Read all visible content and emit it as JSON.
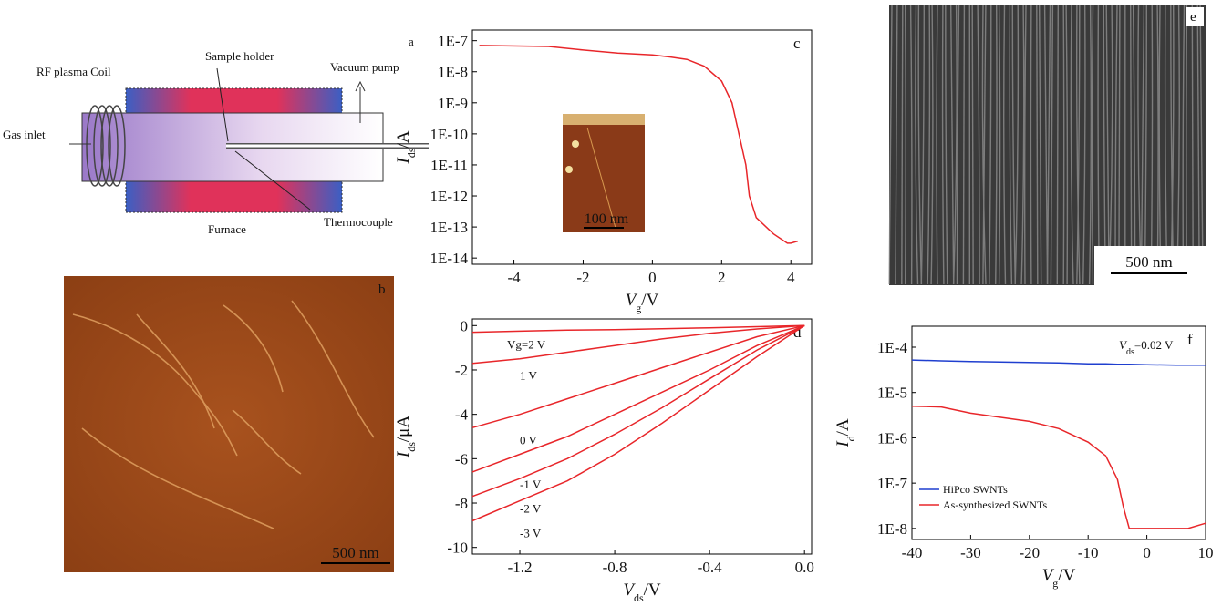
{
  "diagram": {
    "panel_label": "a",
    "labels": [
      "RF plasma Coil",
      "Sample holder",
      "Vacuum pump",
      "Gas inlet",
      "Furnace",
      "Thermocouple"
    ]
  },
  "images": [
    {
      "panel_label": "b",
      "scale_bar": "500 nm"
    },
    {
      "panel_label": "e",
      "scale_bar": "500 nm"
    },
    {
      "scale_bar": "100 nm"
    }
  ],
  "chart_data": [
    {
      "type": "line",
      "panel_label": "c",
      "log_y": true,
      "x": [
        -5,
        -3,
        -2,
        -1,
        0,
        0.5,
        1,
        1.5,
        2,
        2.3,
        2.5,
        2.7,
        2.8,
        3,
        3.5,
        3.9,
        4,
        4.2
      ],
      "series": [
        {
          "color": "#e8262a",
          "values": [
            7e-08,
            6.5e-08,
            5e-08,
            4e-08,
            3.5e-08,
            3e-08,
            2.5e-08,
            1.5e-08,
            5e-09,
            1e-09,
            1e-10,
            1e-11,
            1e-12,
            2e-13,
            6e-14,
            3e-14,
            3e-14,
            3.5e-14
          ]
        }
      ],
      "xlim": [
        -5.2,
        4.6
      ],
      "xticks": [
        -4,
        -2,
        0,
        2,
        4
      ],
      "ylim": [
        6.3e-15,
        2.2e-07
      ],
      "yticks": [
        {
          "value": 1e-14,
          "label": "1E-14"
        },
        {
          "value": 1e-13,
          "label": "1E-13"
        },
        {
          "value": 1e-12,
          "label": "1E-12"
        },
        {
          "value": 1e-11,
          "label": "1E-11"
        },
        {
          "value": 1e-10,
          "label": "1E-10"
        },
        {
          "value": 1e-09,
          "label": "1E-9"
        },
        {
          "value": 1e-08,
          "label": "1E-8"
        },
        {
          "value": 1e-07,
          "label": "1E-7"
        }
      ],
      "xlabel": {
        "symbol": "V",
        "sub": "g",
        "unit": "/V"
      },
      "ylabel": {
        "symbol": "I",
        "sub": "ds",
        "unit": "/A"
      }
    },
    {
      "type": "line",
      "panel_label": "d",
      "log_y": false,
      "x": [
        -1.4,
        -1.2,
        -1.0,
        -0.8,
        -0.6,
        -0.4,
        -0.2,
        0
      ],
      "series": [
        {
          "name": "Vg=2 V",
          "color": "#e8262a",
          "values": [
            -0.3,
            -0.25,
            -0.2,
            -0.18,
            -0.14,
            -0.1,
            -0.05,
            0
          ]
        },
        {
          "name": "1 V",
          "color": "#e8262a",
          "values": [
            -1.7,
            -1.5,
            -1.2,
            -0.9,
            -0.6,
            -0.35,
            -0.15,
            0
          ]
        },
        {
          "name": "0 V",
          "color": "#e8262a",
          "values": [
            -4.6,
            -4.0,
            -3.3,
            -2.6,
            -1.9,
            -1.2,
            -0.5,
            0
          ]
        },
        {
          "name": "-1 V",
          "color": "#e8262a",
          "values": [
            -6.6,
            -5.8,
            -5.0,
            -4.0,
            -3.0,
            -2.0,
            -0.9,
            0
          ]
        },
        {
          "name": "-2 V",
          "color": "#e8262a",
          "values": [
            -7.7,
            -6.9,
            -6.0,
            -4.9,
            -3.7,
            -2.4,
            -1.1,
            0
          ]
        },
        {
          "name": "-3 V",
          "color": "#e8262a",
          "values": [
            -8.8,
            -7.9,
            -7.0,
            -5.8,
            -4.4,
            -2.9,
            -1.4,
            0
          ]
        }
      ],
      "xlim": [
        -1.4,
        0.03
      ],
      "xticks": [
        -1.2,
        -0.8,
        -0.4,
        {
          "value": 0,
          "label": "0.0"
        }
      ],
      "ylim": [
        -10.3,
        0.3
      ],
      "yticks": [
        -10,
        -8,
        -6,
        -4,
        -2,
        0
      ],
      "xlabel": {
        "symbol": "V",
        "sub": "ds",
        "unit": "/V"
      },
      "ylabel": {
        "symbol": "I",
        "sub": "ds",
        "unit": "/μA"
      }
    },
    {
      "type": "line",
      "panel_label": "f",
      "log_y": true,
      "legend": "lower left",
      "annotation": {
        "symbol": "V",
        "sub": "ds",
        "text": "=0.02 V"
      },
      "x": [
        -40,
        -35,
        -30,
        -20,
        -15,
        -10,
        -7,
        -5,
        -4,
        -3,
        0,
        5,
        7,
        10
      ],
      "series": [
        {
          "name": "HiPco SWNTs",
          "color": "#1f3fcf",
          "values": [
            5.2e-05,
            5e-05,
            4.8e-05,
            4.6e-05,
            4.5e-05,
            4.3e-05,
            4.3e-05,
            4.2e-05,
            4.2e-05,
            4.2e-05,
            4.1e-05,
            4e-05,
            4e-05,
            4e-05
          ]
        },
        {
          "name": "As-synthesized SWNTs",
          "color": "#e8262a",
          "values": [
            5e-06,
            4.8e-06,
            3.5e-06,
            2.3e-06,
            1.6e-06,
            8e-07,
            4e-07,
            1.2e-07,
            3e-08,
            1e-08,
            1e-08,
            1e-08,
            1e-08,
            1.3e-08
          ]
        }
      ],
      "xlim": [
        -40,
        10
      ],
      "xticks": [
        -40,
        -30,
        -20,
        -10,
        0,
        10
      ],
      "ylim": [
        5.7e-09,
        0.00029
      ],
      "yticks": [
        {
          "value": 1e-08,
          "label": "1E-8"
        },
        {
          "value": 1e-07,
          "label": "1E-7"
        },
        {
          "value": 1e-06,
          "label": "1E-6"
        },
        {
          "value": 1e-05,
          "label": "1E-5"
        },
        {
          "value": 0.0001,
          "label": "1E-4"
        }
      ],
      "xlabel": {
        "symbol": "V",
        "sub": "g",
        "unit": "/V"
      },
      "ylabel": {
        "symbol": "I",
        "sub": "d",
        "unit": "/A"
      }
    }
  ]
}
